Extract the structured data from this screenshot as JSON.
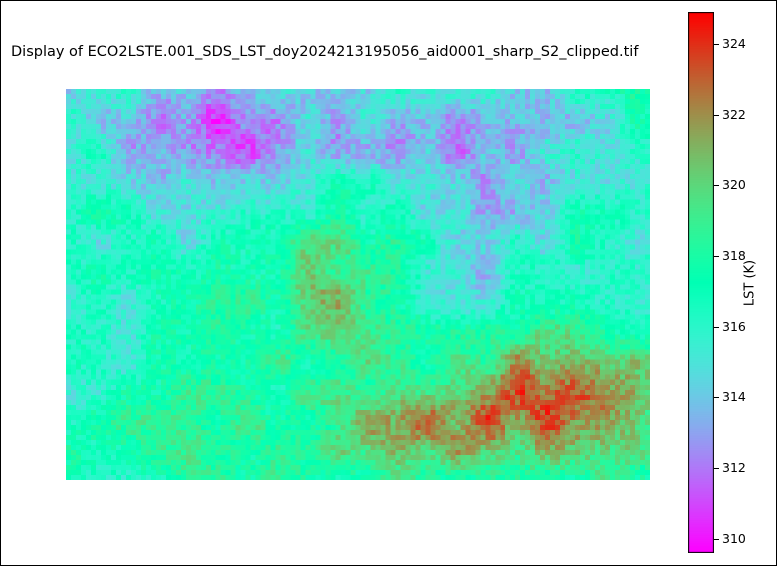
{
  "chart_data": {
    "type": "heatmap",
    "title": "Display of ECO2LSTE.001_SDS_LST_doy2024213195056_aid0001_sharp_S2_clipped.tif",
    "colorbar": {
      "label": "LST (K)",
      "colormap": "rainbow",
      "vmin": 309.6,
      "vmax": 324.9,
      "ticks": [
        310,
        312,
        314,
        316,
        318,
        320,
        322,
        324
      ]
    },
    "grid_size": [
      117,
      78
    ],
    "regions": [
      {
        "name": "cool-north-center",
        "value": 311.5
      },
      {
        "name": "cool-north-east",
        "value": 313.0
      },
      {
        "name": "warm-central-west",
        "value": 320.5
      },
      {
        "name": "hot-south-east",
        "value": 323.5
      },
      {
        "name": "background",
        "value": 316.5
      }
    ]
  }
}
